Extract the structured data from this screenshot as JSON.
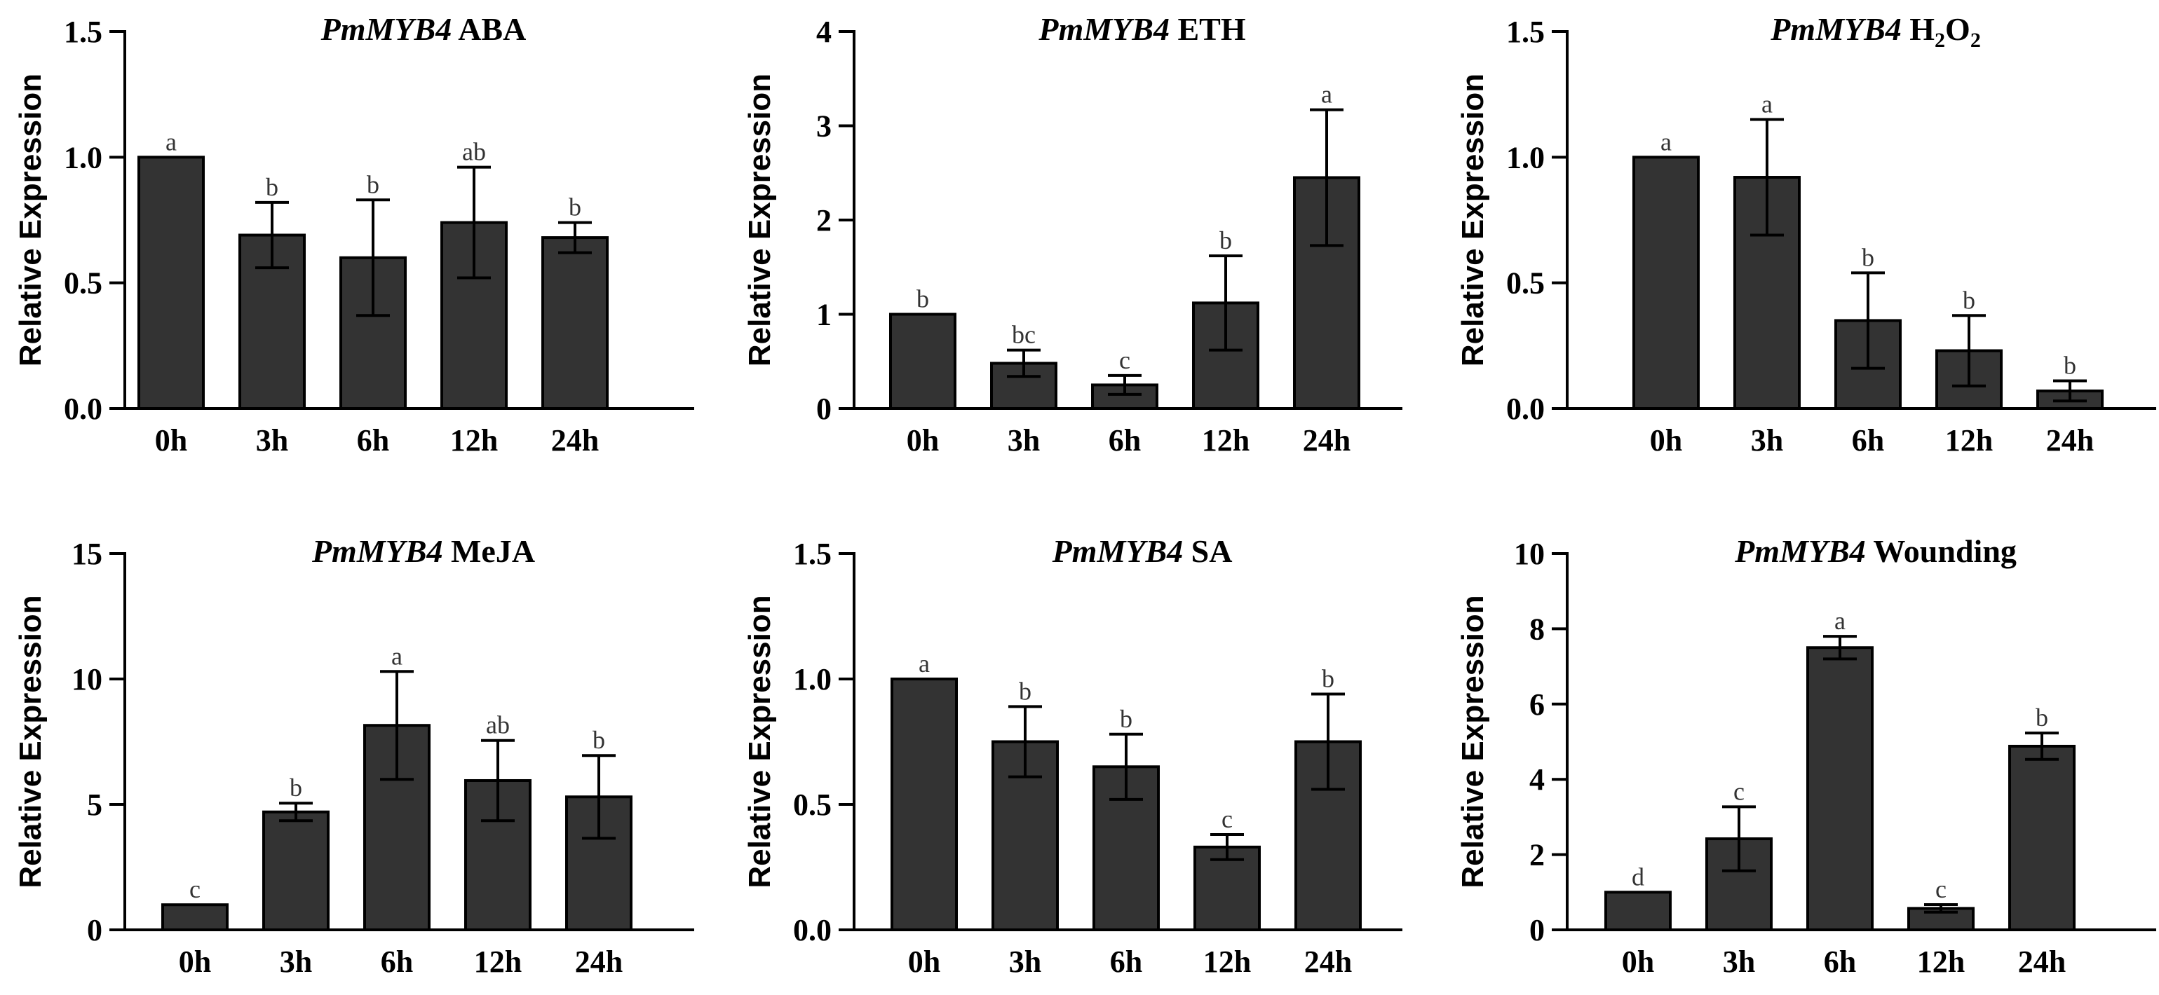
{
  "figure": {
    "bar_color": "#333333",
    "axis_color": "#000000"
  },
  "chart_data": [
    {
      "type": "bar",
      "title": {
        "gene": "PmMYB4",
        "treatment": "ABA"
      },
      "xlabel": "",
      "ylabel": "Relative Expression",
      "categories": [
        "0h",
        "3h",
        "6h",
        "12h",
        "24h"
      ],
      "values": [
        1.0,
        0.69,
        0.6,
        0.74,
        0.68
      ],
      "errors": [
        0.0,
        0.13,
        0.23,
        0.22,
        0.06
      ],
      "significance": [
        "a",
        "b",
        "b",
        "ab",
        "b"
      ],
      "ylim": [
        0,
        1.5
      ],
      "yticks": [
        0.0,
        0.5,
        1.0,
        1.5
      ],
      "ytick_labels": [
        "0.0",
        "0.5",
        "1.0",
        "1.5"
      ]
    },
    {
      "type": "bar",
      "title": {
        "gene": "PmMYB4",
        "treatment": "ETH"
      },
      "xlabel": "",
      "ylabel": "Relative Expression",
      "categories": [
        "0h",
        "3h",
        "6h",
        "12h",
        "24h"
      ],
      "values": [
        1.0,
        0.48,
        0.25,
        1.12,
        2.45
      ],
      "errors": [
        0.0,
        0.14,
        0.1,
        0.5,
        0.72
      ],
      "significance": [
        "b",
        "bc",
        "c",
        "b",
        "a"
      ],
      "ylim": [
        0,
        4
      ],
      "yticks": [
        0,
        1,
        2,
        3,
        4
      ],
      "ytick_labels": [
        "0",
        "1",
        "2",
        "3",
        "4"
      ]
    },
    {
      "type": "bar",
      "title": {
        "gene": "PmMYB4",
        "treatment": "H",
        "sub1": "2",
        "mid": "O",
        "sub2": "2"
      },
      "xlabel": "",
      "ylabel": "Relative Expression",
      "categories": [
        "0h",
        "3h",
        "6h",
        "12h",
        "24h"
      ],
      "values": [
        1.0,
        0.92,
        0.35,
        0.23,
        0.07
      ],
      "errors": [
        0.0,
        0.23,
        0.19,
        0.14,
        0.04
      ],
      "significance": [
        "a",
        "a",
        "b",
        "b",
        "b"
      ],
      "ylim": [
        0,
        1.5
      ],
      "yticks": [
        0.0,
        0.5,
        1.0,
        1.5
      ],
      "ytick_labels": [
        "0.0",
        "0.5",
        "1.0",
        "1.5"
      ]
    },
    {
      "type": "bar",
      "title": {
        "gene": "PmMYB4",
        "treatment": "MeJA"
      },
      "xlabel": "",
      "ylabel": "Relative Expression",
      "categories": [
        "0h",
        "3h",
        "6h",
        "12h",
        "24h"
      ],
      "values": [
        1.0,
        4.7,
        8.15,
        5.95,
        5.3
      ],
      "errors": [
        0.0,
        0.35,
        2.15,
        1.6,
        1.65
      ],
      "significance": [
        "c",
        "b",
        "a",
        "ab",
        "b"
      ],
      "ylim": [
        0,
        15
      ],
      "yticks": [
        0,
        5,
        10,
        15
      ],
      "ytick_labels": [
        "0",
        "5",
        "10",
        "15"
      ]
    },
    {
      "type": "bar",
      "title": {
        "gene": "PmMYB4",
        "treatment": "SA"
      },
      "xlabel": "",
      "ylabel": "Relative Expression",
      "categories": [
        "0h",
        "3h",
        "6h",
        "12h",
        "24h"
      ],
      "values": [
        1.0,
        0.75,
        0.65,
        0.33,
        0.75
      ],
      "errors": [
        0.0,
        0.14,
        0.13,
        0.05,
        0.19
      ],
      "significance": [
        "a",
        "b",
        "b",
        "c",
        "b"
      ],
      "ylim": [
        0,
        1.5
      ],
      "yticks": [
        0.0,
        0.5,
        1.0,
        1.5
      ],
      "ytick_labels": [
        "0.0",
        "0.5",
        "1.0",
        "1.5"
      ]
    },
    {
      "type": "bar",
      "title": {
        "gene": "PmMYB4",
        "treatment": "Wounding"
      },
      "xlabel": "",
      "ylabel": "Relative Expression",
      "categories": [
        "0h",
        "3h",
        "6h",
        "12h",
        "24h"
      ],
      "values": [
        1.0,
        2.42,
        7.5,
        0.57,
        4.88
      ],
      "errors": [
        0.0,
        0.85,
        0.3,
        0.1,
        0.35
      ],
      "significance": [
        "d",
        "c",
        "a",
        "c",
        "b"
      ],
      "ylim": [
        0,
        10
      ],
      "yticks": [
        0,
        2,
        4,
        6,
        8,
        10
      ],
      "ytick_labels": [
        "0",
        "2",
        "4",
        "6",
        "8",
        "10"
      ]
    }
  ]
}
